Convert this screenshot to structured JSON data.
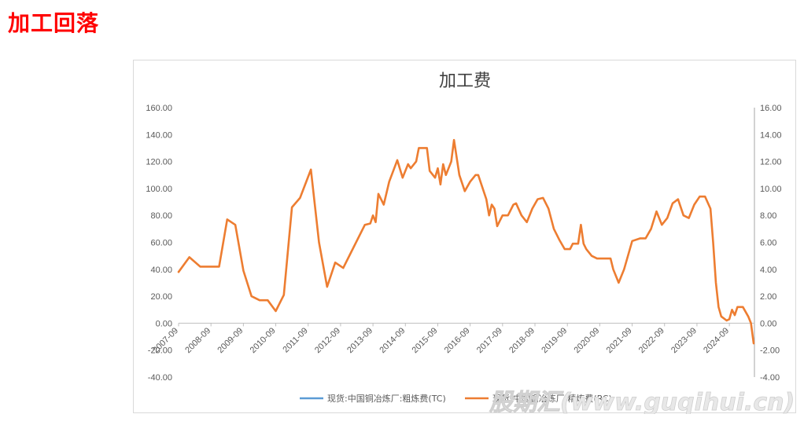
{
  "page": {
    "heading": "加工回落"
  },
  "watermark": "股期汇(www.guqihui.cn)",
  "colors": {
    "tc": "#5b9bd5",
    "rc": "#ed7d31",
    "heading": "#ff0000"
  },
  "chart_data": {
    "type": "line",
    "title": "加工费",
    "x_dates": [
      "2007-09",
      "2008-09",
      "2009-09",
      "2010-09",
      "2011-09",
      "2012-09",
      "2013-09",
      "2014-09",
      "2015-09",
      "2016-09",
      "2017-09",
      "2018-09",
      "2019-09",
      "2020-09",
      "2021-09",
      "2022-09",
      "2023-09",
      "2024-09"
    ],
    "left_axis": {
      "range": [
        -40,
        160
      ],
      "ticks": [
        "160.00",
        "140.00",
        "120.00",
        "100.00",
        "80.00",
        "60.00",
        "40.00",
        "20.00",
        "0.00",
        "-20.00",
        "-40.00"
      ]
    },
    "right_axis": {
      "range": [
        -4,
        16
      ],
      "ticks": [
        "16.00",
        "14.00",
        "12.00",
        "10.00",
        "8.00",
        "6.00",
        "4.00",
        "2.00",
        "0.00",
        "-2.00",
        "-4.00"
      ]
    },
    "legend_position": "bottom",
    "series": [
      {
        "name": "现货:中国铜冶炼厂:粗炼费(TC)",
        "axis": "left",
        "points": []
      },
      {
        "name": "现货:中国铜冶炼厂:精炼费(RC)",
        "axis": "right",
        "points": [
          [
            "2007-09",
            3.8
          ],
          [
            "2008-01",
            4.9
          ],
          [
            "2008-05",
            4.2
          ],
          [
            "2008-12",
            4.2
          ],
          [
            "2009-03",
            7.7
          ],
          [
            "2009-06",
            7.3
          ],
          [
            "2009-09",
            3.9
          ],
          [
            "2009-12",
            2.0
          ],
          [
            "2010-03",
            1.7
          ],
          [
            "2010-06",
            1.7
          ],
          [
            "2010-09",
            0.9
          ],
          [
            "2010-12",
            2.1
          ],
          [
            "2011-03",
            8.6
          ],
          [
            "2011-06",
            9.3
          ],
          [
            "2011-10",
            11.4
          ],
          [
            "2012-01",
            6.0
          ],
          [
            "2012-04",
            2.7
          ],
          [
            "2012-07",
            4.5
          ],
          [
            "2012-10",
            4.1
          ],
          [
            "2013-01",
            5.3
          ],
          [
            "2013-06",
            7.3
          ],
          [
            "2013-08",
            7.4
          ],
          [
            "2013-09",
            8.0
          ],
          [
            "2013-10",
            7.5
          ],
          [
            "2013-11",
            9.6
          ],
          [
            "2014-01",
            8.8
          ],
          [
            "2014-03",
            10.5
          ],
          [
            "2014-06",
            12.1
          ],
          [
            "2014-08",
            10.8
          ],
          [
            "2014-10",
            11.8
          ],
          [
            "2014-11",
            11.5
          ],
          [
            "2015-01",
            12.0
          ],
          [
            "2015-02",
            13.0
          ],
          [
            "2015-05",
            13.0
          ],
          [
            "2015-06",
            11.3
          ],
          [
            "2015-08",
            10.8
          ],
          [
            "2015-09",
            11.5
          ],
          [
            "2015-10",
            10.3
          ],
          [
            "2015-11",
            11.8
          ],
          [
            "2015-12",
            11.0
          ],
          [
            "2016-02",
            12.0
          ],
          [
            "2016-03",
            13.6
          ],
          [
            "2016-05",
            11.0
          ],
          [
            "2016-07",
            9.8
          ],
          [
            "2016-09",
            10.5
          ],
          [
            "2016-11",
            11.0
          ],
          [
            "2016-12",
            11.0
          ],
          [
            "2017-03",
            9.2
          ],
          [
            "2017-04",
            8.0
          ],
          [
            "2017-05",
            8.8
          ],
          [
            "2017-06",
            8.5
          ],
          [
            "2017-07",
            7.2
          ],
          [
            "2017-09",
            8.0
          ],
          [
            "2017-11",
            8.0
          ],
          [
            "2018-01",
            8.8
          ],
          [
            "2018-02",
            8.9
          ],
          [
            "2018-04",
            8.0
          ],
          [
            "2018-06",
            7.5
          ],
          [
            "2018-08",
            8.5
          ],
          [
            "2018-10",
            9.2
          ],
          [
            "2018-12",
            9.3
          ],
          [
            "2019-02",
            8.5
          ],
          [
            "2019-04",
            7.0
          ],
          [
            "2019-06",
            6.2
          ],
          [
            "2019-08",
            5.5
          ],
          [
            "2019-10",
            5.5
          ],
          [
            "2019-11",
            5.9
          ],
          [
            "2020-01",
            5.9
          ],
          [
            "2020-02",
            7.3
          ],
          [
            "2020-03",
            5.9
          ],
          [
            "2020-04",
            5.5
          ],
          [
            "2020-06",
            5.0
          ],
          [
            "2020-08",
            4.8
          ],
          [
            "2020-11",
            4.8
          ],
          [
            "2021-01",
            4.8
          ],
          [
            "2021-02",
            4.0
          ],
          [
            "2021-04",
            3.0
          ],
          [
            "2021-06",
            4.0
          ],
          [
            "2021-09",
            6.1
          ],
          [
            "2021-12",
            6.3
          ],
          [
            "2022-02",
            6.3
          ],
          [
            "2022-04",
            7.0
          ],
          [
            "2022-06",
            8.3
          ],
          [
            "2022-07",
            7.8
          ],
          [
            "2022-08",
            7.3
          ],
          [
            "2022-10",
            7.8
          ],
          [
            "2022-12",
            8.9
          ],
          [
            "2023-02",
            9.2
          ],
          [
            "2023-04",
            8.0
          ],
          [
            "2023-06",
            7.8
          ],
          [
            "2023-08",
            8.8
          ],
          [
            "2023-10",
            9.4
          ],
          [
            "2023-12",
            9.4
          ],
          [
            "2024-02",
            8.5
          ],
          [
            "2024-03",
            6.0
          ],
          [
            "2024-04",
            3.0
          ],
          [
            "2024-05",
            1.2
          ],
          [
            "2024-06",
            0.5
          ],
          [
            "2024-08",
            0.2
          ],
          [
            "2024-09",
            0.3
          ],
          [
            "2024-10",
            1.0
          ],
          [
            "2024-11",
            0.6
          ],
          [
            "2024-12",
            1.2
          ],
          [
            "2025-02",
            1.2
          ],
          [
            "2025-04",
            0.5
          ],
          [
            "2025-05",
            0.0
          ],
          [
            "2025-06",
            -1.5
          ]
        ]
      }
    ]
  }
}
